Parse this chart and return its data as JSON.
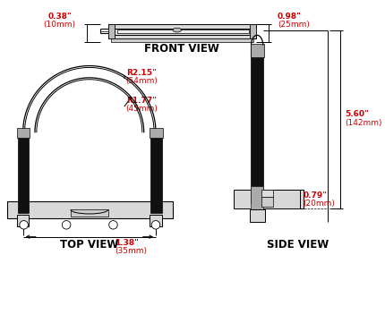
{
  "bg_color": "#ffffff",
  "line_color": "#000000",
  "dim_color": "#cc0000",
  "dark_fill": "#111111",
  "gray_fill": "#aaaaaa",
  "light_gray": "#d8d8d8",
  "mid_gray": "#888888",
  "white_fill": "#ffffff",
  "front_view_label": "FRONT VIEW",
  "top_view_label": "TOP VIEW",
  "side_view_label": "SIDE VIEW",
  "dim_038": "0.38\"",
  "dim_10mm": "(10mm)",
  "dim_098": "0.98\"",
  "dim_25mm": "(25mm)",
  "dim_215": "R2.15\"",
  "dim_54mm": "(54mm)",
  "dim_177": "R1.77\"",
  "dim_45mm": "(45mm)",
  "dim_138": "1.38\"",
  "dim_35mm": "(35mm)",
  "dim_560": "5.60\"",
  "dim_142mm": "(142mm)",
  "dim_079": "0.79\"",
  "dim_20mm": "(20mm)"
}
